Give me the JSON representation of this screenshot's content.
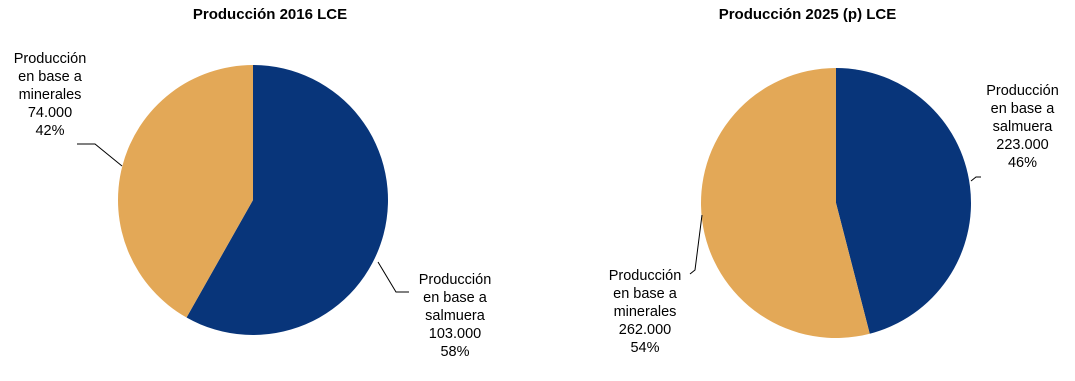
{
  "chart_data": [
    {
      "type": "pie",
      "title": "Producción 2016 LCE",
      "start_angle_deg": 0,
      "direction": "clockwise",
      "slices": [
        {
          "label": "Producción en base a salmuera",
          "label_lines": [
            "Producción",
            "en base a",
            "salmuera"
          ],
          "value": 103000,
          "value_text": "103.000",
          "percent_text": "58%",
          "color": "#08357A"
        },
        {
          "label": "Producción en base a minerales",
          "label_lines": [
            "Producción",
            "en base a",
            "minerales"
          ],
          "value": 74000,
          "value_text": "74.000",
          "percent_text": "42%",
          "color": "#E3A857"
        }
      ],
      "legend": "none"
    },
    {
      "type": "pie",
      "title": "Producción 2025 (p) LCE",
      "start_angle_deg": 0,
      "direction": "clockwise",
      "slices": [
        {
          "label": "Producción en base a salmuera",
          "label_lines": [
            "Producción",
            "en base a",
            "salmuera"
          ],
          "value": 223000,
          "value_text": "223.000",
          "percent_text": "46%",
          "color": "#08357A"
        },
        {
          "label": "Producción en base a minerales",
          "label_lines": [
            "Producción",
            "en base a",
            "minerales"
          ],
          "value": 262000,
          "value_text": "262.000",
          "percent_text": "54%",
          "color": "#E3A857"
        }
      ],
      "legend": "none"
    }
  ]
}
